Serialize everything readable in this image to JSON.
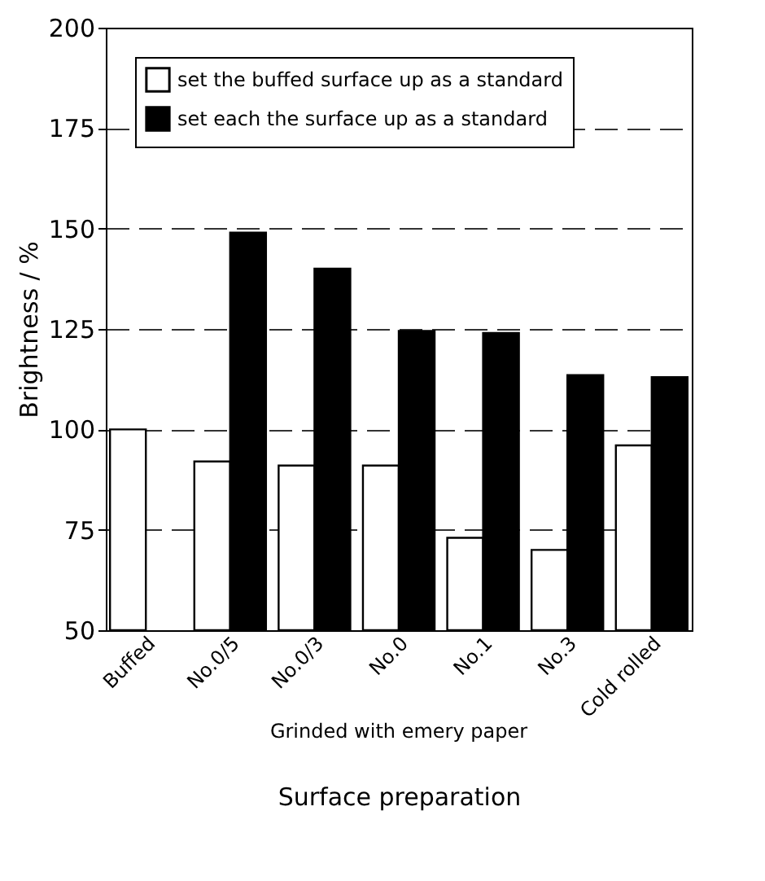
{
  "chart_data": {
    "type": "bar",
    "xlabel": "Surface preparation",
    "ylabel": "Brightness / %",
    "categories": [
      "Buffed",
      "No.0/5",
      "No.0/3",
      "No.0",
      "No.1",
      "No.3",
      "Cold rolled"
    ],
    "series": [
      {
        "name": "set the buffed surface up as a standard",
        "color": "#ffffff",
        "values": [
          100,
          92,
          91,
          91,
          73,
          70,
          96
        ]
      },
      {
        "name": "set each the surface up as a standard",
        "color": "#000000",
        "values": [
          null,
          149,
          140,
          124.5,
          124,
          113.5,
          113
        ]
      }
    ],
    "ylim": [
      50,
      200
    ],
    "yticks": [
      50,
      75,
      100,
      125,
      150,
      175,
      200
    ],
    "grid": "y",
    "legend": "top",
    "annotations": [
      "Grinded with emery paper"
    ]
  }
}
